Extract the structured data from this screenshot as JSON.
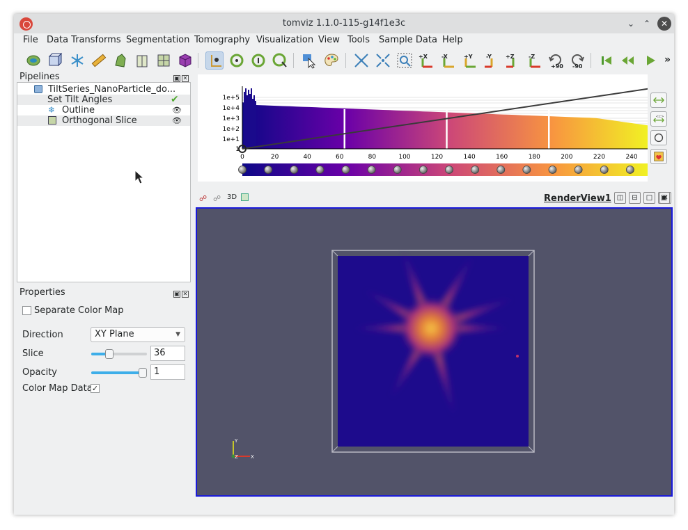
{
  "window": {
    "title": "tomviz 1.1.0-115-g14f1e3c"
  },
  "menu": [
    "File",
    "Data Transforms",
    "Segmentation",
    "Tomography",
    "Visualization",
    "View",
    "Tools",
    "Sample Data",
    "Help"
  ],
  "toolbar": {
    "axis_labels": [
      "+X",
      "-X",
      "+Y",
      "-Y",
      "+Z",
      "-Z"
    ],
    "rotate_labels": [
      "+90",
      "-90"
    ],
    "overflow": "»"
  },
  "pipelines": {
    "title": "Pipelines",
    "items": [
      {
        "label": "TiltSeries_NanoParticle_do...",
        "status": ""
      },
      {
        "label": "Set Tilt Angles",
        "status": "done"
      },
      {
        "label": "Outline",
        "status": "visible"
      },
      {
        "label": "Orthogonal Slice",
        "status": "visible"
      }
    ]
  },
  "properties": {
    "title": "Properties",
    "separate_color_map": {
      "label": "Separate Color Map",
      "checked": false
    },
    "direction": {
      "label": "Direction",
      "value": "XY Plane"
    },
    "slice": {
      "label": "Slice",
      "value": "36",
      "slider_fraction": 0.33
    },
    "opacity": {
      "label": "Opacity",
      "value": "1",
      "slider_fraction": 1.0
    },
    "color_map_data": {
      "label": "Color Map Data",
      "checked": true
    }
  },
  "histogram": {
    "y_ticks": [
      "1e+5",
      "1e+4",
      "1e+3",
      "1e+2",
      "1e+1",
      "1"
    ],
    "x_ticks": [
      "0",
      "20",
      "40",
      "60",
      "80",
      "100",
      "120",
      "140",
      "160",
      "180",
      "200",
      "220",
      "240"
    ],
    "x_range": [
      0,
      255
    ],
    "markers": [
      63,
      126,
      189
    ],
    "colormap": "plasma",
    "colors": {
      "low": "#0d0887",
      "mid": "#cc4778",
      "high": "#f0f921"
    }
  },
  "render_view": {
    "mode_label": "3D",
    "name": "RenderView1",
    "orientation_axes": [
      "Y",
      "Z",
      "X"
    ],
    "background": "#525369"
  }
}
